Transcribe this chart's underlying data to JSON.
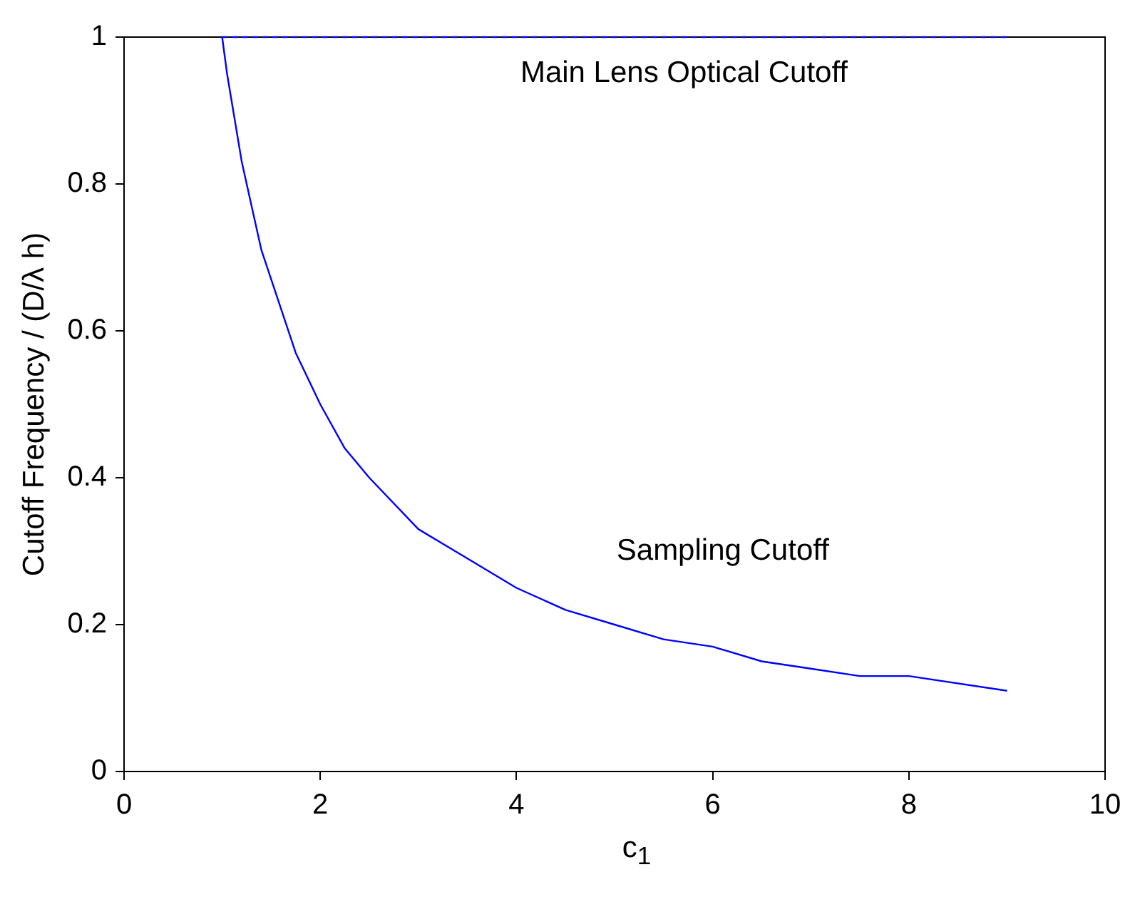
{
  "chart_data": {
    "type": "line",
    "xlabel": "c$_{1}$",
    "ylabel": "Cutoff Frequency / (D/λ h)",
    "xlim": [
      0,
      10
    ],
    "xticks": [
      0,
      2,
      4,
      6,
      8,
      10
    ],
    "ylim": [
      0,
      1
    ],
    "yticks": [
      0,
      {
        "value": 0.2,
        "label": "0.2"
      },
      {
        "value": 0.4,
        "label": "0.4"
      },
      {
        "value": 0.6,
        "label": "0.6"
      },
      {
        "value": 0.8,
        "label": "0.8"
      },
      1
    ],
    "grid": false,
    "legend": false,
    "marker": "none",
    "series": [
      {
        "color": "#0000ff",
        "line_style": "solid",
        "x": [
          1,
          1.05,
          1.1,
          1.2,
          1.3,
          1.4,
          1.5,
          1.75,
          2,
          2.25,
          2.5,
          3,
          3.5,
          4,
          4.5,
          5,
          5.5,
          6,
          6.5,
          7,
          7.5,
          8,
          9
        ],
        "values": [
          1,
          0.95,
          0.91,
          0.83,
          0.77,
          0.71,
          0.67,
          0.57,
          0.5,
          0.44,
          0.4,
          0.33,
          0.29,
          0.25,
          0.22,
          0.2,
          0.18,
          0.17,
          0.15,
          0.14,
          0.13,
          0.13,
          0.11
        ]
      },
      {
        "color": "#0000ff",
        "line_style": "dashed",
        "x": [
          1,
          9
        ],
        "values": [
          1,
          1
        ]
      }
    ],
    "annotations": [
      "Main Lens Optical Cutoff",
      "Sampling Cutoff"
    ]
  }
}
